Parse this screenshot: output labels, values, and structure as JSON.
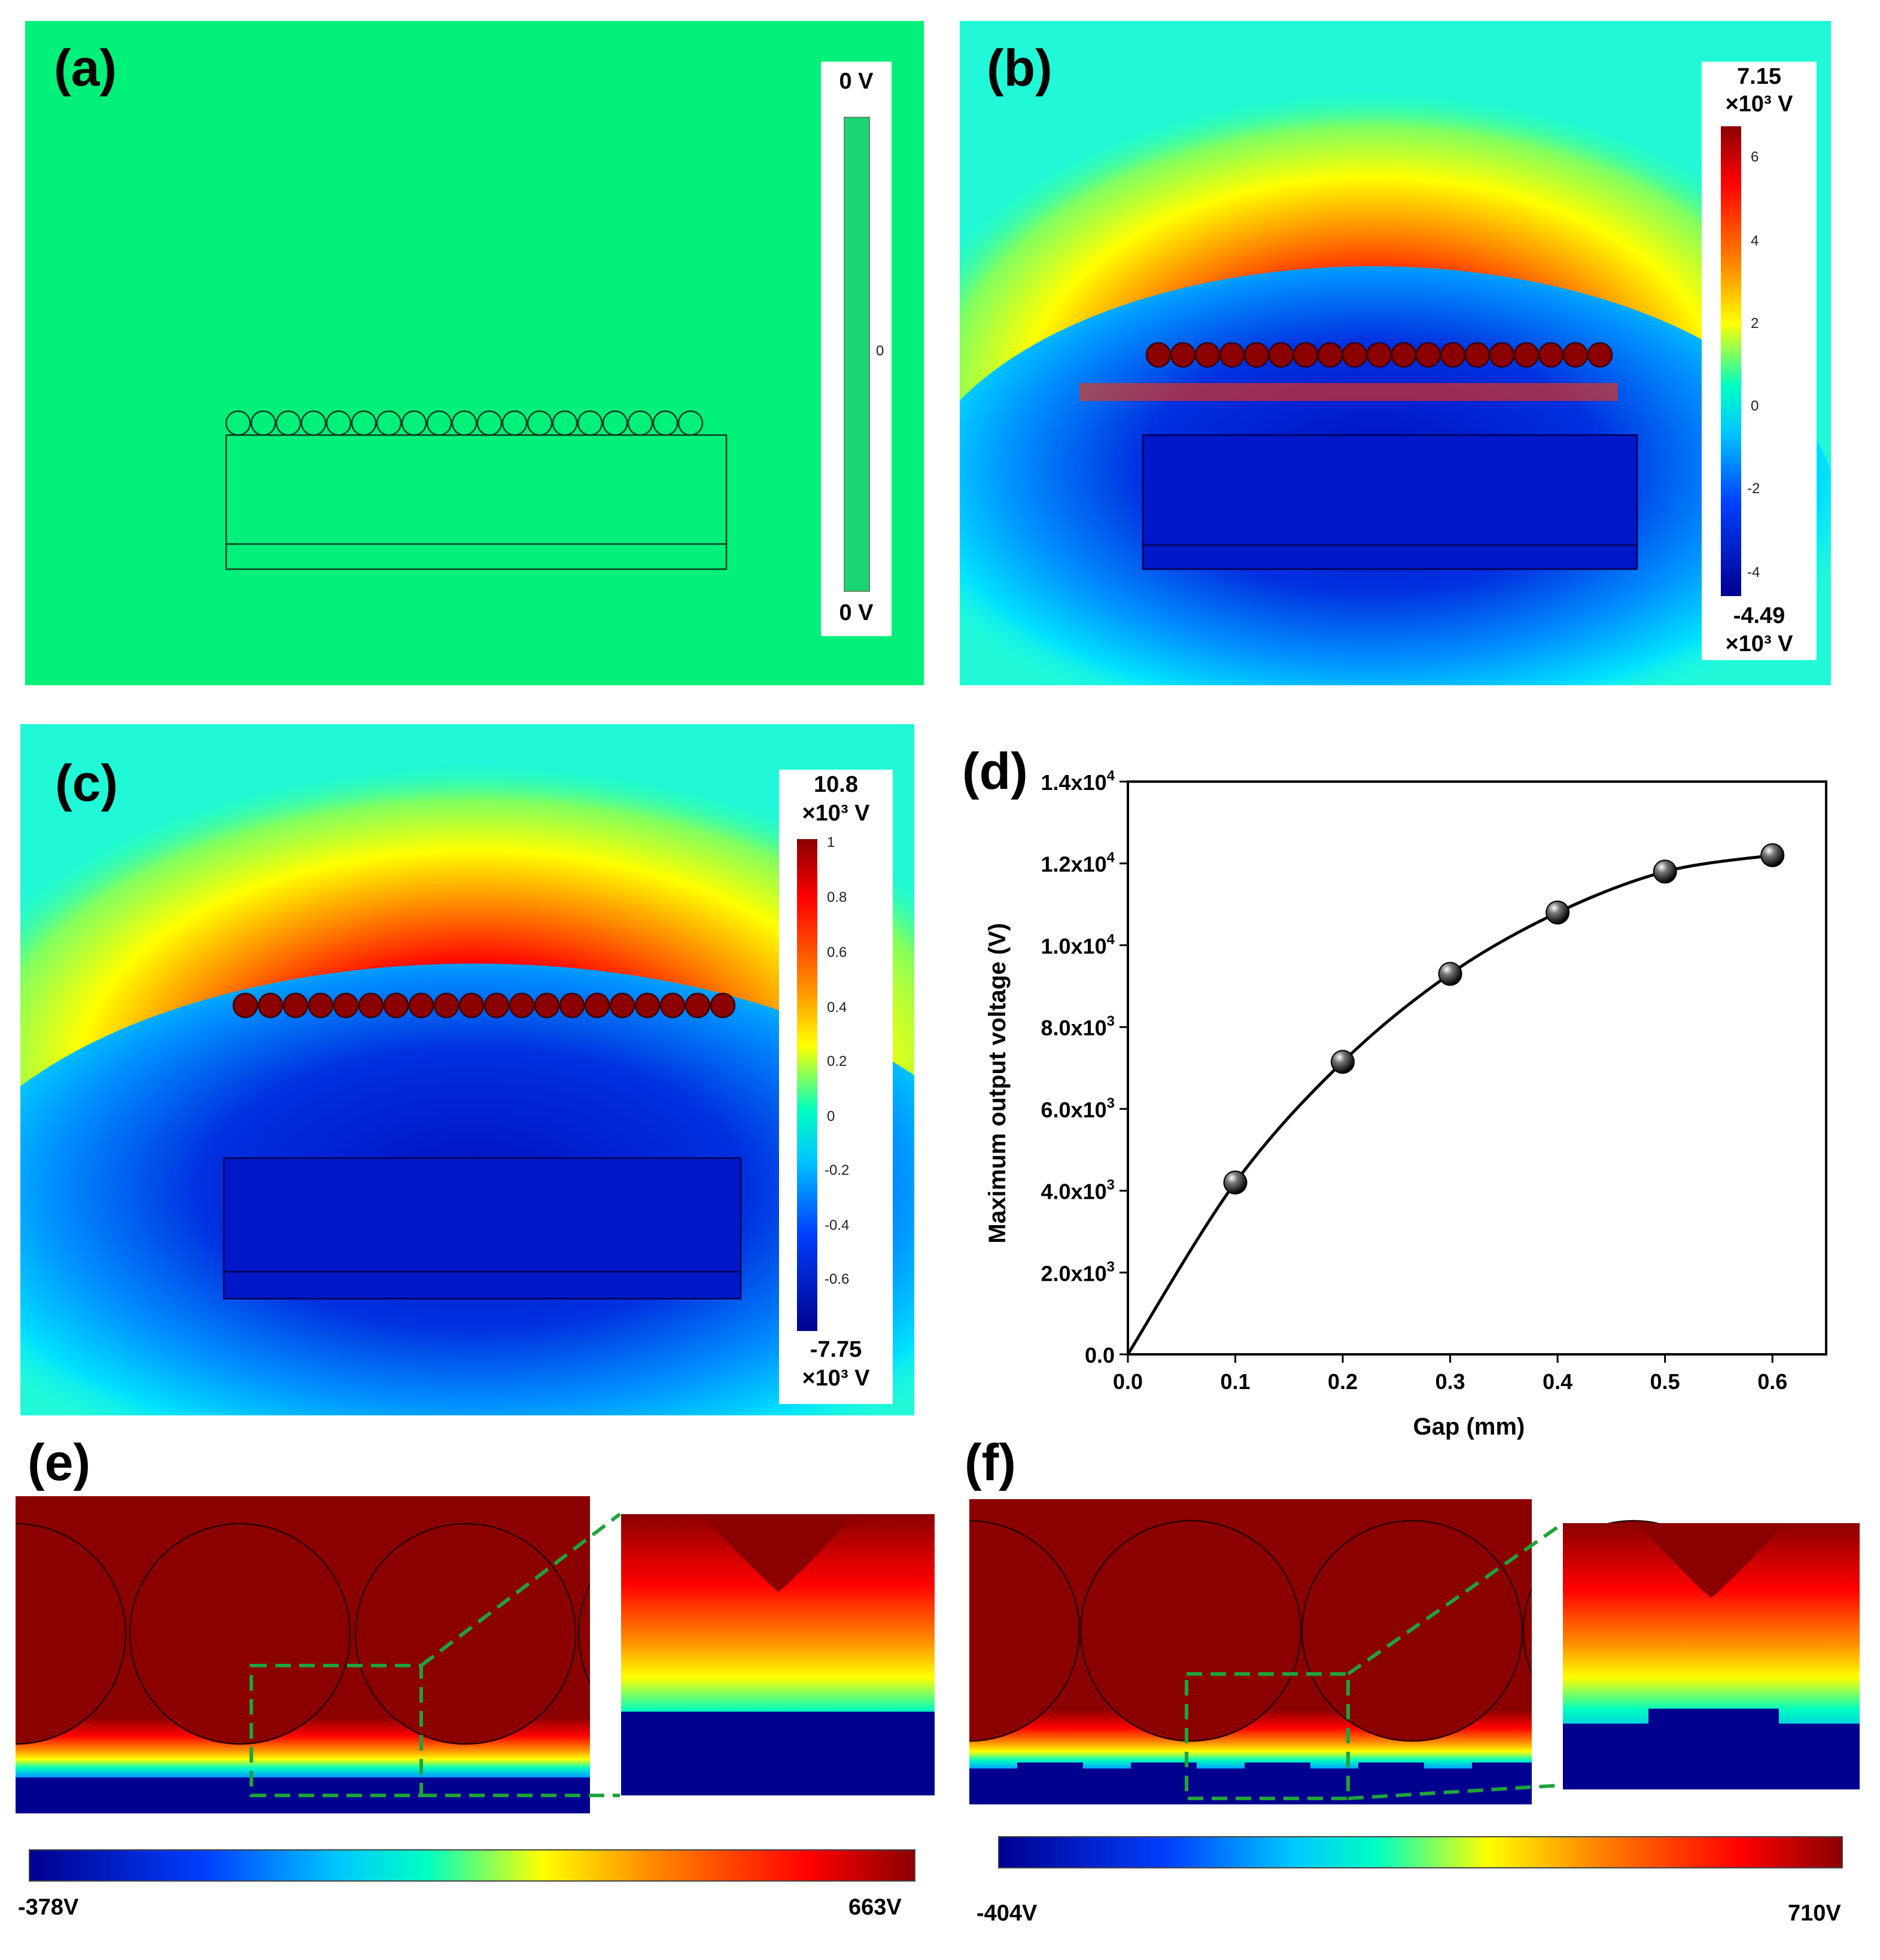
{
  "figure": {
    "panel_labels": {
      "a": "(a)",
      "b": "(b)",
      "c": "(c)",
      "d": "(d)",
      "e": "(e)",
      "f": "(f)"
    }
  },
  "panel_a": {
    "colorbar": {
      "max_label": "0 V",
      "min_label": "0 V",
      "tick": "0"
    }
  },
  "panel_b": {
    "colorbar": {
      "max_value": "7.15",
      "max_unit": "×10³ V",
      "min_value": "-4.49",
      "min_unit": "×10³ V",
      "ticks": [
        "6",
        "4",
        "2",
        "0",
        "-2",
        "-4"
      ]
    }
  },
  "panel_c": {
    "colorbar": {
      "max_value": "10.8",
      "max_unit": "×10³ V",
      "min_value": "-7.75",
      "min_unit": "×10³ V",
      "ticks": [
        "1",
        "0.8",
        "0.6",
        "0.4",
        "0.2",
        "0",
        "-0.2",
        "-0.4",
        "-0.6"
      ]
    }
  },
  "panel_e": {
    "colorbar": {
      "min_label": "-378V",
      "max_label": "663V"
    }
  },
  "panel_f": {
    "colorbar": {
      "min_label": "-404V",
      "max_label": "710V"
    }
  },
  "colors": {
    "field_green": "#00f07a",
    "hot": "#8b0000",
    "cold": "#00008f"
  },
  "chart_data": {
    "type": "scatter",
    "title": "",
    "xlabel": "Gap (mm)",
    "ylabel": "Maximum output voltage (V)",
    "x": [
      0.1,
      0.2,
      0.3,
      0.4,
      0.5,
      0.6
    ],
    "y": [
      4200,
      7150,
      9300,
      10800,
      11800,
      12200
    ],
    "fit_line": {
      "x": [
        0.0,
        0.1,
        0.2,
        0.3,
        0.4,
        0.5,
        0.6
      ],
      "y": [
        0,
        4200,
        7150,
        9300,
        10800,
        11800,
        12200
      ]
    },
    "xlim": [
      0.0,
      0.65
    ],
    "ylim": [
      0,
      14000
    ],
    "xticks": [
      "0.0",
      "0.1",
      "0.2",
      "0.3",
      "0.4",
      "0.5",
      "0.6"
    ],
    "xtick_values": [
      0.0,
      0.1,
      0.2,
      0.3,
      0.4,
      0.5,
      0.6
    ],
    "yticks": [
      {
        "value": 0,
        "mant": "0.0",
        "exp": ""
      },
      {
        "value": 2000,
        "mant": "2.0x10",
        "exp": "3"
      },
      {
        "value": 4000,
        "mant": "4.0x10",
        "exp": "3"
      },
      {
        "value": 6000,
        "mant": "6.0x10",
        "exp": "3"
      },
      {
        "value": 8000,
        "mant": "8.0x10",
        "exp": "3"
      },
      {
        "value": 10000,
        "mant": "1.0x10",
        "exp": "4"
      },
      {
        "value": 12000,
        "mant": "1.2x10",
        "exp": "4"
      },
      {
        "value": 14000,
        "mant": "1.4x10",
        "exp": "4"
      }
    ]
  }
}
